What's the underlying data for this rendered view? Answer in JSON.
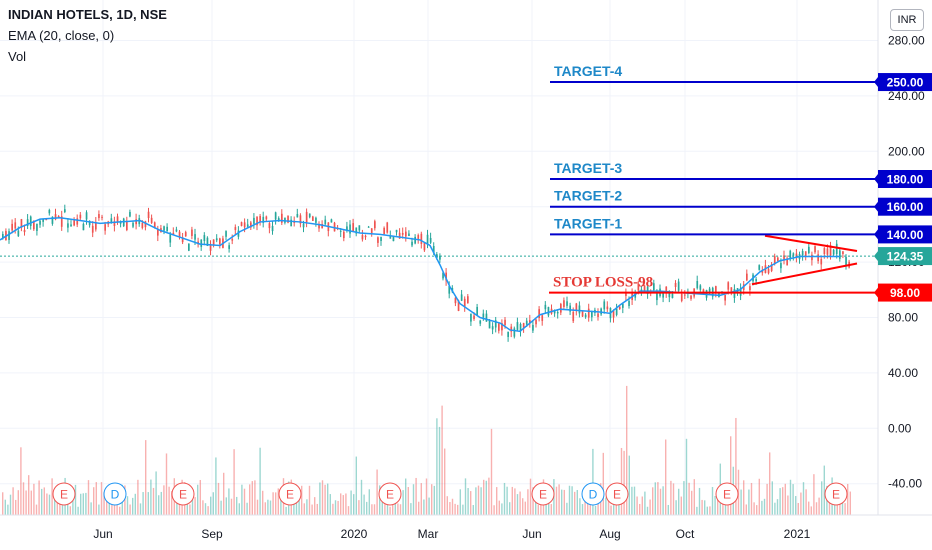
{
  "legend": {
    "symbol": "INDIAN HOTELS, 1D, NSE",
    "indicator": "EMA (20, close, 0)",
    "volume": "Vol"
  },
  "currency": "INR",
  "colors": {
    "target_line": "#0000cc",
    "target_text": "#1e88c8",
    "stop_line": "#ff0000",
    "stop_text": "#e53935",
    "ema": "#2196f3",
    "up": "#26a69a",
    "down": "#ef5350",
    "last_price": "#26a69a",
    "grid": "#f0f3fa"
  },
  "chart_data": {
    "type": "line",
    "title": "INDIAN HOTELS, 1D, NSE",
    "ylim": [
      -60,
      290
    ],
    "y_ticks": [
      "280.00",
      "240.00",
      "200.00",
      "160.00",
      "120.00",
      "80.00",
      "40.00",
      "0.00",
      "-40.00"
    ],
    "y_tick_values": [
      280,
      240,
      200,
      160,
      120,
      80,
      40,
      0,
      -40
    ],
    "x_ticks": [
      "Jun",
      "Sep",
      "2020",
      "Mar",
      "Jun",
      "Aug",
      "Oct",
      "2021"
    ],
    "series": [
      {
        "name": "EMA (20, close, 0)",
        "points": [
          [
            0,
            136
          ],
          [
            20,
            145
          ],
          [
            40,
            151
          ],
          [
            60,
            152
          ],
          [
            80,
            150
          ],
          [
            100,
            148
          ],
          [
            120,
            149
          ],
          [
            140,
            150
          ],
          [
            160,
            143
          ],
          [
            180,
            138
          ],
          [
            200,
            133
          ],
          [
            220,
            132
          ],
          [
            240,
            142
          ],
          [
            260,
            149
          ],
          [
            280,
            150
          ],
          [
            300,
            149
          ],
          [
            320,
            147
          ],
          [
            340,
            144
          ],
          [
            360,
            141
          ],
          [
            380,
            140
          ],
          [
            400,
            138
          ],
          [
            420,
            136
          ],
          [
            430,
            132
          ],
          [
            440,
            118
          ],
          [
            450,
            102
          ],
          [
            460,
            90
          ],
          [
            480,
            80
          ],
          [
            500,
            76
          ],
          [
            510,
            71
          ],
          [
            520,
            70
          ],
          [
            530,
            76
          ],
          [
            540,
            82
          ],
          [
            560,
            86
          ],
          [
            580,
            85
          ],
          [
            600,
            84
          ],
          [
            610,
            83
          ],
          [
            620,
            89
          ],
          [
            640,
            99
          ],
          [
            660,
            99
          ],
          [
            680,
            98
          ],
          [
            700,
            97
          ],
          [
            720,
            96
          ],
          [
            740,
            100
          ],
          [
            760,
            113
          ],
          [
            780,
            121
          ],
          [
            800,
            124
          ],
          [
            820,
            124
          ],
          [
            840,
            124
          ]
        ]
      }
    ],
    "price_bars_summary": "daily OHLC candles from mid-2019 to early 2021, price ranging roughly 60 to 165",
    "horizontal_levels": [
      {
        "label": "TARGET-4",
        "value": 250.0,
        "tag": "250.00",
        "kind": "target"
      },
      {
        "label": "TARGET-3",
        "value": 180.0,
        "tag": "180.00",
        "kind": "target"
      },
      {
        "label": "TARGET-2",
        "value": 160.0,
        "tag": "160.00",
        "kind": "target"
      },
      {
        "label": "TARGET-1",
        "value": 140.0,
        "tag": "140.00",
        "kind": "target"
      },
      {
        "label": "STOP LOSS-98",
        "value": 98.0,
        "tag": "98.00",
        "kind": "stop"
      }
    ],
    "last_price": {
      "value": 124.35,
      "tag": "124.35"
    },
    "triangle": {
      "upper": [
        [
          765,
          139
        ],
        [
          857,
          128
        ]
      ],
      "lower": [
        [
          752,
          104
        ],
        [
          857,
          119
        ]
      ]
    },
    "earnings_markers": [
      {
        "label": "E",
        "x": 64
      },
      {
        "label": "D",
        "x": 115
      },
      {
        "label": "E",
        "x": 183
      },
      {
        "label": "E",
        "x": 290
      },
      {
        "label": "E",
        "x": 390
      },
      {
        "label": "E",
        "x": 543
      },
      {
        "label": "D",
        "x": 593
      },
      {
        "label": "E",
        "x": 617
      },
      {
        "label": "E",
        "x": 727
      },
      {
        "label": "E",
        "x": 836
      }
    ]
  }
}
